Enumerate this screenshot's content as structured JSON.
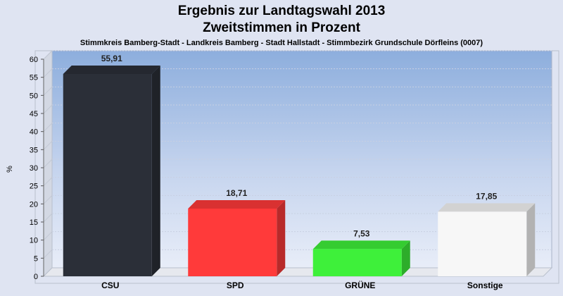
{
  "chart_data": {
    "type": "bar",
    "title": "Ergebnis zur Landtagswahl 2013",
    "title2": "Zweitstimmen in Prozent",
    "subtitle": "Stimmkreis Bamberg-Stadt - Landkreis Bamberg - Stadt Hallstadt - Stimmbezirk Grundschule Dörfleins (0007)",
    "ylabel": "%",
    "xlabel": "",
    "ylim": [
      0,
      60
    ],
    "yticks": [
      0,
      5,
      10,
      15,
      20,
      25,
      30,
      35,
      40,
      45,
      50,
      55,
      60
    ],
    "categories": [
      "CSU",
      "SPD",
      "GRÜNE",
      "Sonstige"
    ],
    "values": [
      55.91,
      18.71,
      7.53,
      17.85
    ],
    "value_labels": [
      "55,91",
      "18,71",
      "7,53",
      "17,85"
    ],
    "colors": [
      "#2b2f38",
      "#ff3a3a",
      "#3ef03a",
      "#f7f7f7"
    ],
    "grid": true,
    "style": "3d-bar"
  }
}
